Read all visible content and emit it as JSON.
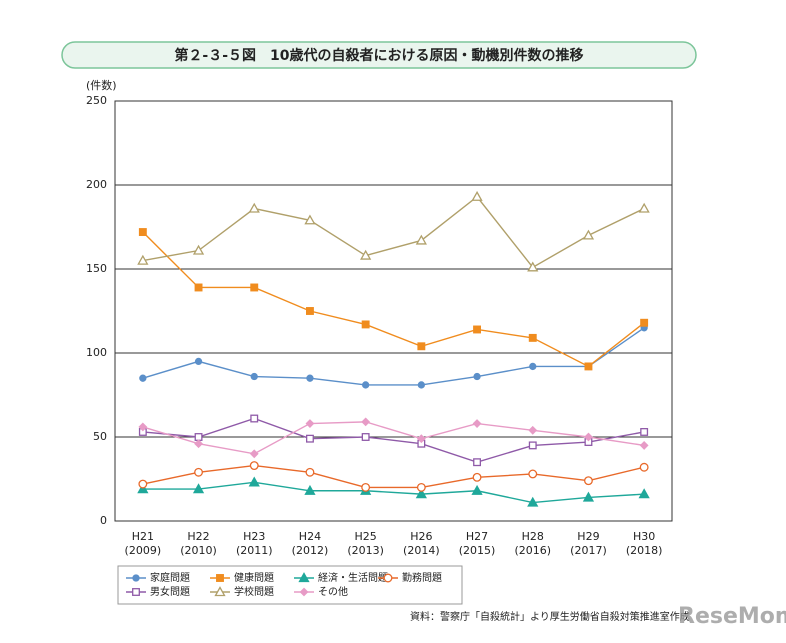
{
  "chart_data": {
    "type": "line",
    "title": "第２-３-５図　10歳代の自殺者における原因・動機別件数の推移",
    "y_label": "(件数)",
    "source": "資料：警察庁「自殺統計」より厚生労働省自殺対策推進室作成",
    "watermark": "ReseMom",
    "categories": [
      [
        "H21",
        "(2009)"
      ],
      [
        "H22",
        "(2010)"
      ],
      [
        "H23",
        "(2011)"
      ],
      [
        "H24",
        "(2012)"
      ],
      [
        "H25",
        "(2013)"
      ],
      [
        "H26",
        "(2014)"
      ],
      [
        "H27",
        "(2015)"
      ],
      [
        "H28",
        "(2016)"
      ],
      [
        "H29",
        "(2017)"
      ],
      [
        "H30",
        "(2018)"
      ]
    ],
    "ylim": [
      0,
      250
    ],
    "yticks": [
      0,
      50,
      100,
      150,
      200,
      250
    ],
    "grid": true,
    "series": [
      {
        "name": "家庭問題",
        "color": "#5b8fc9",
        "marker": "circle",
        "filled": true,
        "values": [
          85,
          95,
          86,
          85,
          81,
          81,
          86,
          92,
          92,
          115
        ]
      },
      {
        "name": "健康問題",
        "color": "#f08c1e",
        "marker": "square",
        "filled": true,
        "values": [
          172,
          139,
          139,
          125,
          117,
          104,
          114,
          109,
          92,
          118
        ]
      },
      {
        "name": "経済・生活問題",
        "color": "#1fa89a",
        "marker": "triangle",
        "filled": true,
        "values": [
          19,
          19,
          23,
          18,
          18,
          16,
          18,
          11,
          14,
          16
        ]
      },
      {
        "name": "勤務問題",
        "color": "#e8692a",
        "marker": "circle",
        "filled": false,
        "values": [
          22,
          29,
          33,
          29,
          20,
          20,
          26,
          28,
          24,
          32
        ]
      },
      {
        "name": "男女問題",
        "color": "#8f5aa8",
        "marker": "square",
        "filled": false,
        "values": [
          53,
          50,
          61,
          49,
          50,
          46,
          35,
          45,
          47,
          53
        ]
      },
      {
        "name": "学校問題",
        "color": "#b0a06a",
        "marker": "triangle",
        "filled": false,
        "values": [
          155,
          161,
          186,
          179,
          158,
          167,
          193,
          151,
          170,
          186
        ]
      },
      {
        "name": "その他",
        "color": "#e79bc6",
        "marker": "diamond",
        "filled": true,
        "values": [
          56,
          46,
          40,
          58,
          59,
          49,
          58,
          54,
          50,
          45
        ]
      }
    ]
  }
}
